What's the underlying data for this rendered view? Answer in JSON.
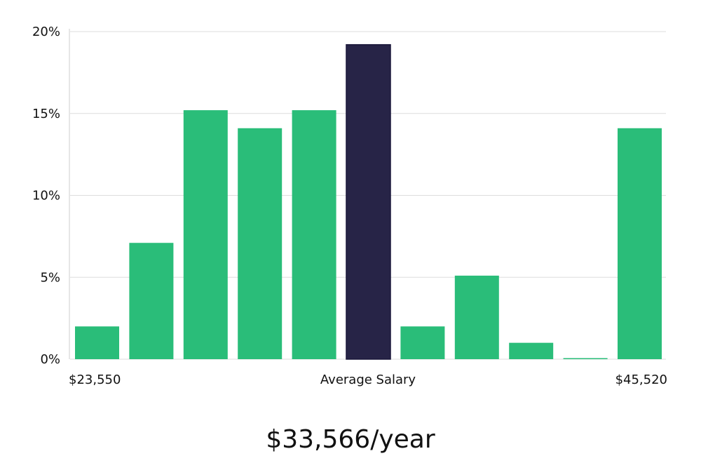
{
  "chart_data": {
    "type": "bar",
    "values": [
      2,
      7.1,
      15.2,
      14.1,
      15.2,
      19.2,
      2,
      5.1,
      1,
      0,
      14.1
    ],
    "highlight_index": 5,
    "ylim": [
      0,
      20
    ],
    "yticks": [
      0,
      5,
      10,
      15,
      20
    ],
    "ytick_labels": [
      "0%",
      "5%",
      "10%",
      "15%",
      "20%"
    ],
    "x_min_label": "$23,550",
    "x_center_label": "Average Salary",
    "x_max_label": "$45,520",
    "grid": true,
    "colors": {
      "bar": "#2abd79",
      "highlight": "#272447",
      "grid": "#dddddd",
      "axis": "#cccccc"
    }
  },
  "summary": {
    "salary_text": "$33,566/year"
  }
}
